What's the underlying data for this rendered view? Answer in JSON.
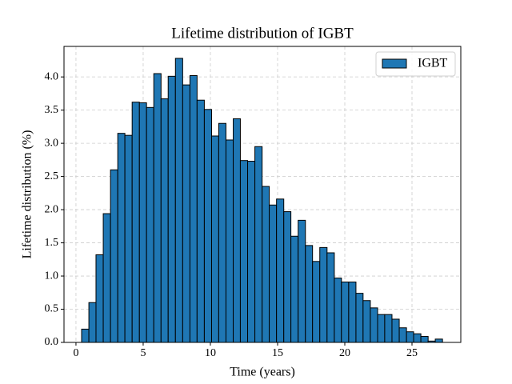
{
  "chart_data": {
    "type": "histogram",
    "title": "Lifetime distribution of IGBT",
    "x_label": "Time (years)",
    "y_label": "Lifetime distribution (%)",
    "bins": [
      0.42,
      0.96,
      1.49,
      2.03,
      2.57,
      3.11,
      3.64,
      4.18,
      4.72,
      5.25,
      5.79,
      6.33,
      6.86,
      7.4,
      7.94,
      8.48,
      9.01,
      9.55,
      10.09,
      10.62,
      11.16,
      11.7,
      12.23,
      12.77,
      13.31,
      13.85,
      14.38,
      14.92,
      15.46,
      15.99,
      16.53,
      17.07,
      17.6,
      18.14,
      18.68,
      19.22,
      19.75,
      20.29,
      20.83,
      21.36,
      21.9,
      22.44,
      22.97,
      23.51,
      24.05,
      24.59,
      25.12,
      25.66,
      26.2,
      26.73,
      27.27
    ],
    "series": [
      {
        "name": "IGBT",
        "color": "#1f77b4",
        "values": [
          0.2,
          0.6,
          1.32,
          1.94,
          2.6,
          3.15,
          3.12,
          3.62,
          3.61,
          3.54,
          4.05,
          3.67,
          4.01,
          4.28,
          3.88,
          4.02,
          3.65,
          3.51,
          3.11,
          3.3,
          3.05,
          3.37,
          2.74,
          2.73,
          2.95,
          2.35,
          2.07,
          2.16,
          1.97,
          1.6,
          1.84,
          1.46,
          1.22,
          1.43,
          1.35,
          0.97,
          0.91,
          0.91,
          0.74,
          0.63,
          0.52,
          0.42,
          0.42,
          0.35,
          0.22,
          0.16,
          0.13,
          0.09,
          0.02,
          0.05
        ]
      }
    ],
    "xlim": [
      -0.89,
      28.63
    ],
    "ylim": [
      0,
      4.46
    ],
    "xticks": [
      0,
      5,
      10,
      15,
      20,
      25
    ],
    "yticks": [
      {
        "value": 0,
        "label": "0.0"
      },
      {
        "value": 0.5,
        "label": "0.5"
      },
      {
        "value": 1,
        "label": "1.0"
      },
      {
        "value": 1.5,
        "label": "1.5"
      },
      {
        "value": 2,
        "label": "2.0"
      },
      {
        "value": 2.5,
        "label": "2.5"
      },
      {
        "value": 3,
        "label": "3.0"
      },
      {
        "value": 3.5,
        "label": "3.5"
      },
      {
        "value": 4,
        "label": "4.0"
      }
    ],
    "grid": true,
    "legend": "upper right"
  }
}
